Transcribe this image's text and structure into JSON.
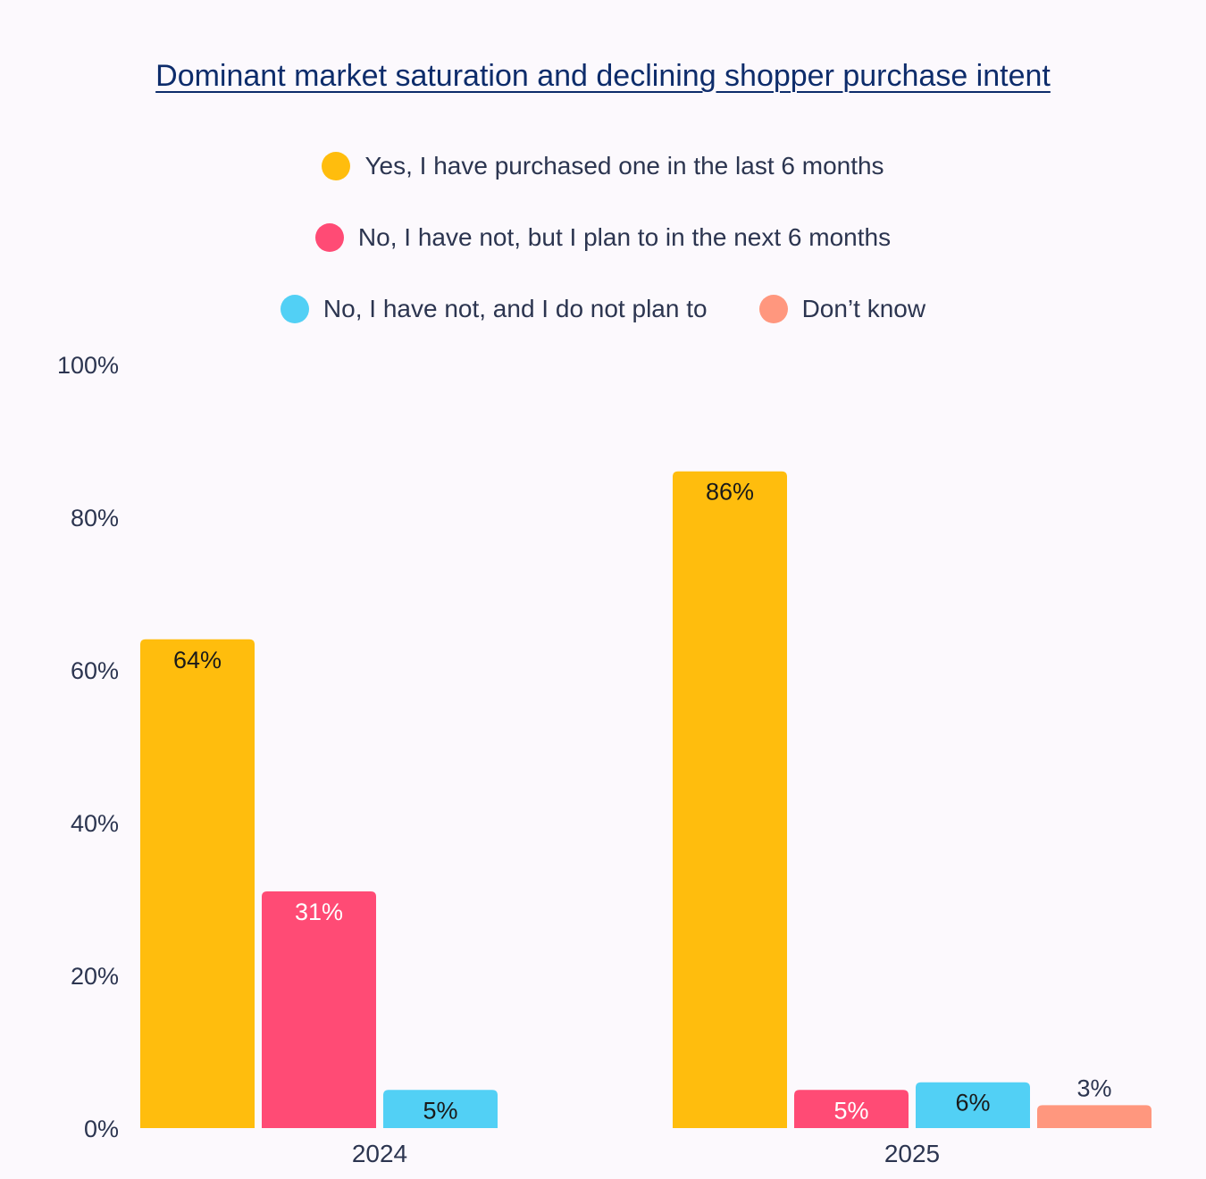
{
  "chart_data": {
    "type": "bar",
    "title": "Dominant market saturation and declining shopper purchase intent",
    "categories": [
      "2024",
      "2025"
    ],
    "ylim": [
      0,
      100
    ],
    "yticks": [
      0,
      20,
      40,
      60,
      80,
      100
    ],
    "ytick_labels": [
      "0%",
      "20%",
      "40%",
      "60%",
      "80%",
      "100%"
    ],
    "grid": false,
    "legend_position": "top-center",
    "series": [
      {
        "name": "Yes, I have purchased one in the last 6 months",
        "color": "#ffbd0d",
        "label_color": "#1a1a1a",
        "values": [
          64,
          86
        ],
        "labels": [
          "64%",
          "86%"
        ]
      },
      {
        "name": "No, I have not, but I plan to in the next 6 months",
        "color": "#ff4b75",
        "label_color": "#ffffff",
        "values": [
          31,
          5
        ],
        "labels": [
          "31%",
          "5%"
        ]
      },
      {
        "name": "No, I have not, and I do not plan to",
        "color": "#52d0f5",
        "label_color": "#1a1a1a",
        "values": [
          5,
          6
        ],
        "labels": [
          "5%",
          "6%"
        ]
      },
      {
        "name": "Don’t know",
        "color": "#ff977e",
        "label_color": "#2c3550",
        "values": [
          null,
          3
        ],
        "labels": [
          "",
          "3%"
        ]
      }
    ]
  }
}
